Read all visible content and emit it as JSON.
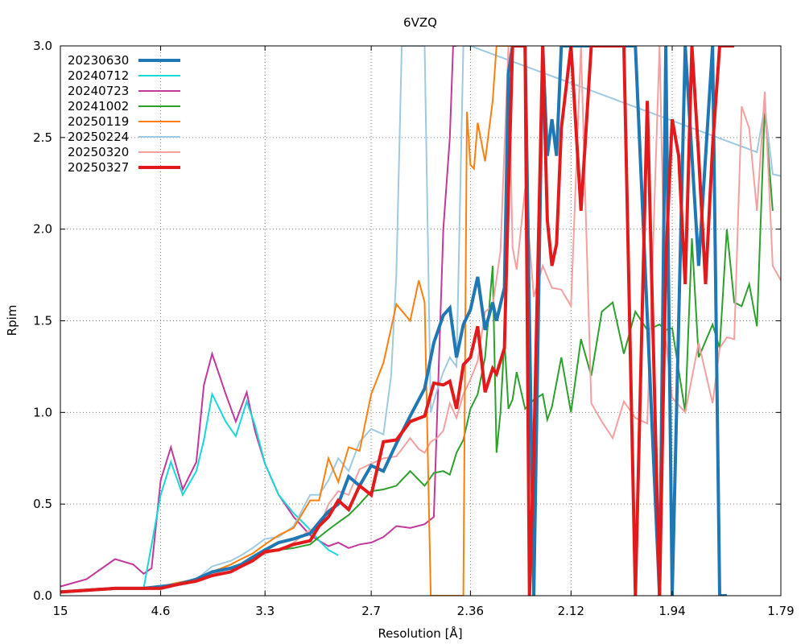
{
  "chart_data": {
    "type": "line",
    "title": "6VZQ",
    "xlabel": "Resolution [Å]",
    "ylabel": "Rpim",
    "x_scale": "1/d^2",
    "xlim_resolution": [
      15,
      1.79
    ],
    "ylim": [
      0,
      3.0
    ],
    "x_ticks": [
      15,
      4.6,
      3.3,
      2.7,
      2.36,
      2.12,
      1.94,
      1.79
    ],
    "y_ticks": [
      0.0,
      0.5,
      1.0,
      1.5,
      2.0,
      2.5,
      3.0
    ],
    "y_tick_labels": [
      "0.0",
      "0.5",
      "1.0",
      "1.5",
      "2.0",
      "2.5",
      "3.0"
    ],
    "grid": true,
    "legend_position": "top-left",
    "series": [
      {
        "name": "20230630",
        "color": "#1f77b4",
        "width": 4,
        "x": [
          15,
          6.0,
          5.0,
          4.6,
          4.3,
          4.0,
          3.8,
          3.6,
          3.5,
          3.4,
          3.3,
          3.2,
          3.1,
          3.0,
          2.95,
          2.9,
          2.85,
          2.8,
          2.75,
          2.7,
          2.65,
          2.6,
          2.55,
          2.5,
          2.47,
          2.44,
          2.42,
          2.4,
          2.38,
          2.36,
          2.34,
          2.32,
          2.3,
          2.29,
          2.27,
          2.26,
          2.25,
          2.22,
          2.2,
          2.18,
          2.17,
          2.16,
          2.15,
          2.14,
          2.0,
          1.96,
          1.95,
          1.94,
          1.92,
          1.9,
          1.88,
          1.87,
          1.86
        ],
        "y": [
          0.02,
          0.04,
          0.04,
          0.05,
          0.06,
          0.09,
          0.13,
          0.15,
          0.17,
          0.21,
          0.25,
          0.29,
          0.31,
          0.34,
          0.4,
          0.46,
          0.5,
          0.65,
          0.6,
          0.71,
          0.68,
          0.83,
          0.98,
          1.13,
          1.38,
          1.53,
          1.57,
          1.3,
          1.48,
          1.56,
          1.74,
          1.45,
          1.6,
          1.5,
          1.68,
          2.85,
          3.0,
          3.0,
          0.0,
          3.0,
          2.4,
          2.6,
          2.4,
          3.0,
          3.0,
          0.0,
          3.0,
          0.0,
          3.0,
          1.8,
          3.0,
          0.0,
          0.0
        ]
      },
      {
        "name": "20240712",
        "color": "#17d8d8",
        "width": 2,
        "x": [
          15,
          6.0,
          5.0,
          4.6,
          4.4,
          4.2,
          4.0,
          3.9,
          3.8,
          3.65,
          3.55,
          3.45,
          3.38,
          3.3,
          3.2,
          3.1,
          3.0,
          2.95,
          2.9,
          2.85
        ],
        "y": [
          0.02,
          0.04,
          0.04,
          0.55,
          0.73,
          0.55,
          0.68,
          0.85,
          1.1,
          0.95,
          0.87,
          1.06,
          0.93,
          0.72,
          0.55,
          0.45,
          0.36,
          0.3,
          0.25,
          0.22
        ]
      },
      {
        "name": "20240723",
        "color": "#c2389b",
        "width": 2,
        "x": [
          15,
          8.0,
          6.0,
          5.3,
          5.0,
          4.8,
          4.6,
          4.4,
          4.2,
          4.0,
          3.9,
          3.8,
          3.65,
          3.55,
          3.45,
          3.38,
          3.3,
          3.2,
          3.1,
          3.0,
          2.95,
          2.9,
          2.85,
          2.8,
          2.75,
          2.7,
          2.65,
          2.6,
          2.55,
          2.5,
          2.47,
          2.44,
          2.42,
          2.41,
          2.4
        ],
        "y": [
          0.05,
          0.09,
          0.2,
          0.17,
          0.12,
          0.15,
          0.63,
          0.81,
          0.58,
          0.73,
          1.15,
          1.32,
          1.1,
          0.95,
          1.11,
          0.9,
          0.72,
          0.55,
          0.43,
          0.33,
          0.3,
          0.27,
          0.29,
          0.26,
          0.28,
          0.29,
          0.32,
          0.38,
          0.37,
          0.39,
          0.43,
          2.0,
          2.5,
          3.0,
          3.0
        ]
      },
      {
        "name": "20241002",
        "color": "#2ca02c",
        "width": 2,
        "x": [
          15,
          6.0,
          5.0,
          4.6,
          4.3,
          4.0,
          3.8,
          3.6,
          3.5,
          3.4,
          3.3,
          3.2,
          3.1,
          3.0,
          2.95,
          2.9,
          2.85,
          2.8,
          2.75,
          2.7,
          2.65,
          2.6,
          2.55,
          2.5,
          2.47,
          2.44,
          2.42,
          2.4,
          2.38,
          2.36,
          2.34,
          2.32,
          2.3,
          2.29,
          2.28,
          2.27,
          2.26,
          2.25,
          2.24,
          2.22,
          2.2,
          2.18,
          2.17,
          2.16,
          2.14,
          2.12,
          2.1,
          2.08,
          2.06,
          2.04,
          2.02,
          2.0,
          1.98,
          1.96,
          1.95,
          1.94,
          1.92,
          1.91,
          1.9,
          1.88,
          1.87,
          1.86,
          1.85,
          1.84,
          1.83,
          1.82,
          1.81,
          1.8
        ],
        "y": [
          0.02,
          0.04,
          0.04,
          0.05,
          0.06,
          0.08,
          0.12,
          0.15,
          0.17,
          0.21,
          0.24,
          0.25,
          0.26,
          0.28,
          0.32,
          0.36,
          0.4,
          0.44,
          0.5,
          0.57,
          0.58,
          0.6,
          0.68,
          0.6,
          0.67,
          0.68,
          0.66,
          0.78,
          0.85,
          1.02,
          1.1,
          1.3,
          1.8,
          0.78,
          1.0,
          1.4,
          1.02,
          1.07,
          1.22,
          1.02,
          1.07,
          1.1,
          0.96,
          1.03,
          1.3,
          1.0,
          1.4,
          1.2,
          1.55,
          1.6,
          1.32,
          1.55,
          1.45,
          1.48,
          1.45,
          1.46,
          1.0,
          1.95,
          1.3,
          1.48,
          1.35,
          2.0,
          1.6,
          1.58,
          1.7,
          1.47,
          2.66,
          2.1
        ]
      },
      {
        "name": "20250119",
        "color": "#ff7f0e",
        "width": 2,
        "x": [
          15,
          6.0,
          5.0,
          4.6,
          4.3,
          4.0,
          3.8,
          3.6,
          3.5,
          3.4,
          3.3,
          3.2,
          3.1,
          3.0,
          2.95,
          2.9,
          2.85,
          2.8,
          2.75,
          2.7,
          2.65,
          2.6,
          2.55,
          2.52,
          2.5,
          2.48,
          2.46,
          2.44,
          2.43,
          2.42,
          2.38,
          2.37,
          2.36,
          2.35,
          2.34,
          2.32,
          2.3,
          2.29,
          2.28,
          2.26,
          2.25
        ],
        "y": [
          0.02,
          0.04,
          0.04,
          0.05,
          0.07,
          0.09,
          0.13,
          0.17,
          0.2,
          0.23,
          0.28,
          0.33,
          0.37,
          0.52,
          0.52,
          0.75,
          0.62,
          0.81,
          0.79,
          1.1,
          1.27,
          1.59,
          1.5,
          1.72,
          1.6,
          0.0,
          0.0,
          0.0,
          0.0,
          0.0,
          0.0,
          2.64,
          2.35,
          2.33,
          2.58,
          2.37,
          2.7,
          3.0,
          3.0,
          3.0,
          3.0
        ]
      },
      {
        "name": "20250224",
        "color": "#9ecae1",
        "width": 2,
        "x": [
          15,
          6.0,
          5.0,
          4.6,
          4.3,
          4.0,
          3.8,
          3.6,
          3.5,
          3.4,
          3.3,
          3.2,
          3.1,
          3.0,
          2.95,
          2.9,
          2.85,
          2.8,
          2.75,
          2.7,
          2.65,
          2.62,
          2.6,
          2.58,
          2.55,
          2.53,
          2.5,
          2.48,
          2.46,
          2.44,
          2.42,
          2.4,
          2.38,
          2.37,
          2.36,
          1.82,
          1.81,
          1.8,
          1.79
        ],
        "y": [
          0.02,
          0.04,
          0.04,
          0.05,
          0.07,
          0.09,
          0.16,
          0.19,
          0.22,
          0.26,
          0.31,
          0.32,
          0.38,
          0.55,
          0.55,
          0.63,
          0.75,
          0.68,
          0.84,
          0.91,
          0.88,
          1.2,
          1.76,
          3.0,
          3.0,
          3.0,
          3.0,
          1.0,
          1.12,
          1.22,
          1.3,
          1.25,
          3.0,
          3.0,
          3.0,
          2.42,
          2.67,
          2.3,
          2.29
        ]
      },
      {
        "name": "20250320",
        "color": "#f4a0a0",
        "width": 2,
        "x": [
          15,
          6.0,
          5.0,
          4.6,
          4.3,
          4.0,
          3.8,
          3.6,
          3.5,
          3.4,
          3.3,
          3.2,
          3.1,
          3.0,
          2.95,
          2.9,
          2.85,
          2.8,
          2.75,
          2.7,
          2.65,
          2.6,
          2.55,
          2.52,
          2.5,
          2.48,
          2.46,
          2.44,
          2.42,
          2.4,
          2.38,
          2.36,
          2.34,
          2.32,
          2.3,
          2.28,
          2.26,
          2.25,
          2.24,
          2.22,
          2.2,
          2.18,
          2.16,
          2.14,
          2.12,
          2.1,
          2.08,
          2.06,
          2.04,
          2.02,
          2.0,
          1.98,
          1.96,
          1.95,
          1.94,
          1.92,
          1.9,
          1.88,
          1.87,
          1.86,
          1.85,
          1.84,
          1.83,
          1.82,
          1.81,
          1.8,
          1.79
        ],
        "y": [
          0.02,
          0.04,
          0.04,
          0.05,
          0.06,
          0.08,
          0.12,
          0.15,
          0.17,
          0.2,
          0.23,
          0.25,
          0.29,
          0.36,
          0.37,
          0.5,
          0.57,
          0.55,
          0.69,
          0.72,
          0.75,
          0.76,
          0.86,
          0.8,
          0.78,
          0.84,
          0.86,
          0.9,
          1.05,
          0.97,
          1.1,
          1.18,
          1.28,
          1.55,
          1.58,
          1.88,
          3.0,
          1.9,
          1.78,
          2.22,
          1.63,
          1.8,
          1.68,
          1.67,
          1.58,
          3.0,
          1.05,
          0.95,
          0.86,
          1.06,
          0.97,
          0.94,
          3.0,
          1.4,
          1.08,
          1.0,
          1.38,
          1.05,
          1.35,
          1.41,
          1.4,
          2.67,
          2.55,
          2.1,
          2.75,
          1.8,
          1.72
        ]
      },
      {
        "name": "20250327",
        "color": "#e31a1c",
        "width": 4,
        "x": [
          15,
          6.0,
          5.0,
          4.6,
          4.3,
          4.0,
          3.8,
          3.6,
          3.5,
          3.4,
          3.3,
          3.2,
          3.1,
          3.0,
          2.95,
          2.9,
          2.85,
          2.8,
          2.75,
          2.7,
          2.65,
          2.6,
          2.55,
          2.5,
          2.47,
          2.44,
          2.42,
          2.4,
          2.38,
          2.36,
          2.34,
          2.32,
          2.3,
          2.29,
          2.27,
          2.26,
          2.25,
          2.22,
          2.21,
          2.2,
          2.18,
          2.17,
          2.16,
          2.15,
          2.14,
          2.12,
          2.1,
          2.08,
          2.06,
          2.04,
          2.02,
          2.0,
          1.98,
          1.96,
          1.95,
          1.94,
          1.93,
          1.92,
          1.91,
          1.9,
          1.89,
          1.88,
          1.87,
          1.86,
          1.85
        ],
        "y": [
          0.02,
          0.04,
          0.04,
          0.04,
          0.06,
          0.08,
          0.11,
          0.13,
          0.16,
          0.19,
          0.24,
          0.25,
          0.28,
          0.3,
          0.38,
          0.43,
          0.52,
          0.47,
          0.6,
          0.55,
          0.84,
          0.85,
          0.95,
          0.98,
          1.16,
          1.15,
          1.17,
          1.02,
          1.26,
          1.3,
          1.47,
          1.11,
          1.24,
          1.21,
          1.35,
          2.2,
          3.0,
          3.0,
          0.0,
          0.78,
          3.0,
          2.05,
          1.8,
          1.92,
          2.55,
          3.0,
          2.1,
          3.0,
          3.0,
          3.0,
          3.0,
          0.0,
          2.7,
          0.0,
          1.82,
          2.6,
          2.4,
          1.7,
          3.0,
          2.4,
          1.7,
          2.45,
          3.0,
          3.0,
          3.0
        ]
      }
    ]
  }
}
